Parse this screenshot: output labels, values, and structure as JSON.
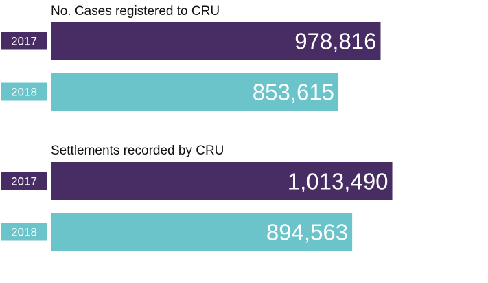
{
  "colors": {
    "series_2017": "#472d63",
    "series_2018": "#6cc4cb"
  },
  "chart_data": [
    {
      "type": "bar",
      "orientation": "horizontal",
      "title": "No. Cases registered to CRU",
      "categories": [
        "2017",
        "2018"
      ],
      "values": [
        978816,
        853615
      ],
      "value_labels": [
        "978,816",
        "853,615"
      ],
      "xlim": [
        0,
        1100000
      ],
      "grid": false
    },
    {
      "type": "bar",
      "orientation": "horizontal",
      "title": "Settlements recorded by CRU",
      "categories": [
        "2017",
        "2018"
      ],
      "values": [
        1013490,
        894563
      ],
      "value_labels": [
        "1,013,490",
        "894,563"
      ],
      "xlim": [
        0,
        1100000
      ],
      "grid": false
    }
  ]
}
